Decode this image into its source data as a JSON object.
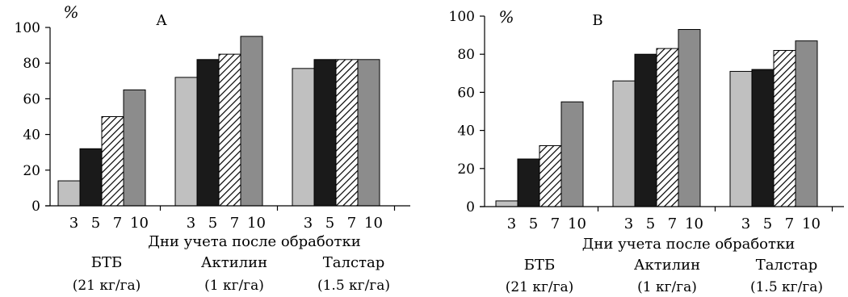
{
  "chart_data": [
    {
      "type": "bar",
      "panel_label": "A",
      "y_unit": "%",
      "ylim": [
        0,
        100
      ],
      "yticks": [
        0,
        20,
        40,
        60,
        80,
        100
      ],
      "xlabel": "Дни учета после обработки",
      "day_labels": [
        "3",
        "5",
        "7",
        "10"
      ],
      "series_styles": [
        "light-gray",
        "black",
        "diagonal-hatch",
        "gray"
      ],
      "grid": false,
      "groups": [
        {
          "name": "БТБ",
          "dose": "(21 кг/га)",
          "values": [
            14,
            32,
            50,
            65
          ]
        },
        {
          "name": "Актилин",
          "dose": "(1 кг/га)",
          "values": [
            72,
            82,
            85,
            95
          ]
        },
        {
          "name": "Талстар",
          "dose": "(1.5 кг/га)",
          "values": [
            77,
            82,
            82,
            82
          ]
        }
      ]
    },
    {
      "type": "bar",
      "panel_label": "B",
      "y_unit": "%",
      "ylim": [
        0,
        100
      ],
      "yticks": [
        0,
        20,
        40,
        60,
        80,
        100
      ],
      "xlabel": "Дни учета после обработки",
      "day_labels": [
        "3",
        "5",
        "7",
        "10"
      ],
      "series_styles": [
        "light-gray",
        "black",
        "diagonal-hatch",
        "gray"
      ],
      "grid": false,
      "groups": [
        {
          "name": "БТБ",
          "dose": "(21 кг/га)",
          "values": [
            3,
            25,
            32,
            55
          ]
        },
        {
          "name": "Актилин",
          "dose": "(1 кг/га)",
          "values": [
            66,
            80,
            83,
            93
          ]
        },
        {
          "name": "Талстар",
          "dose": "(1.5 кг/га)",
          "values": [
            71,
            72,
            82,
            87
          ]
        }
      ]
    }
  ],
  "colors": {
    "series": [
      "#c0c0c0",
      "#1a1a1a",
      "#ffffff",
      "#8c8c8c"
    ],
    "stroke": "#000000",
    "hatch": "#000000"
  }
}
